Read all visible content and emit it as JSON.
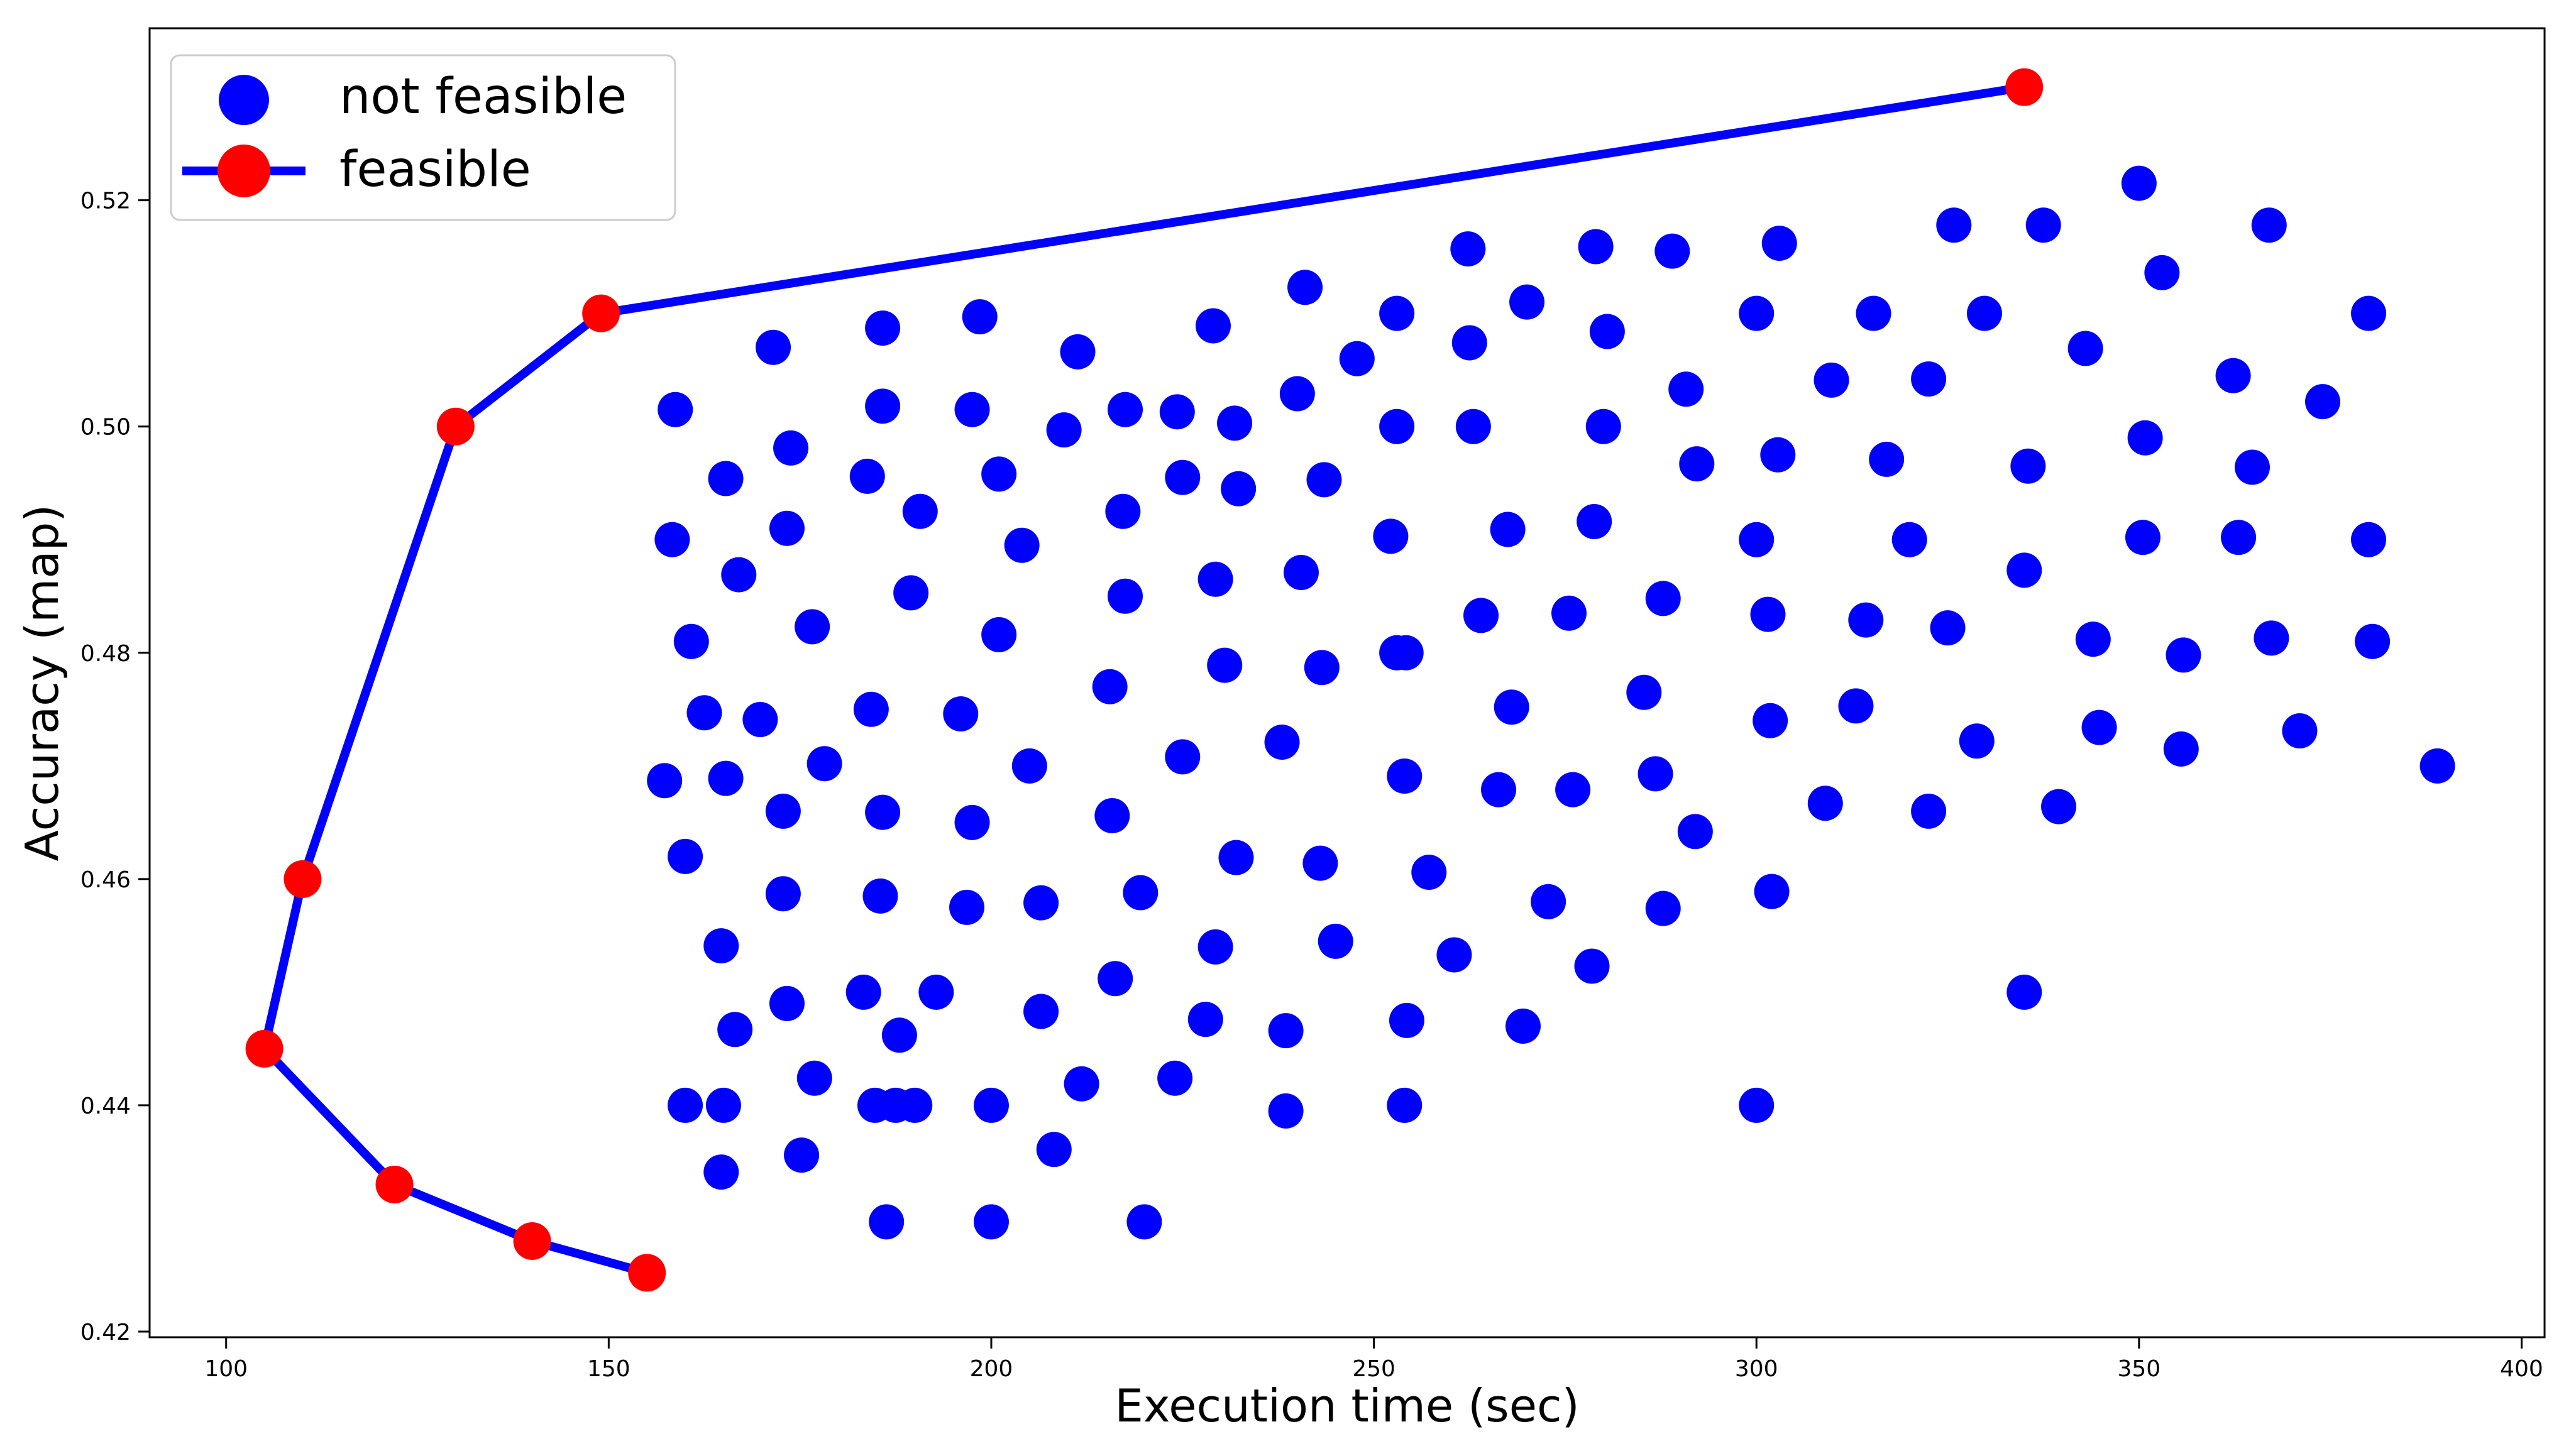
{
  "chart_data": {
    "type": "scatter",
    "title": "",
    "xlabel": "Execution time (sec)",
    "ylabel": "Accuracy (map)",
    "xlim": [
      90,
      403
    ],
    "ylim": [
      0.4195,
      0.5352
    ],
    "x_ticks": [
      100,
      150,
      200,
      250,
      300,
      350,
      400
    ],
    "x_tick_labels": [
      "100",
      "150",
      "200",
      "250",
      "300",
      "350",
      "400"
    ],
    "y_ticks": [
      0.42,
      0.44,
      0.46,
      0.48,
      0.5,
      0.52
    ],
    "y_tick_labels": [
      "0.42",
      "0.44",
      "0.46",
      "0.48",
      "0.50",
      "0.52"
    ],
    "grid": false,
    "legend": {
      "placement": "top-left",
      "entries": [
        {
          "label": "not feasible",
          "marker": "circle",
          "color": "#0000ff"
        },
        {
          "label": "feasible",
          "marker": "circle-with-line",
          "color": "#ff0000",
          "line_color": "#0000ff"
        }
      ]
    },
    "series": [
      {
        "name": "not feasible",
        "kind": "scatter",
        "color": "#0000ff",
        "points": [
          [
            158.7,
            0.5015
          ],
          [
            158.3,
            0.49
          ],
          [
            160.8,
            0.481
          ],
          [
            162.5,
            0.4747
          ],
          [
            157.3,
            0.4687
          ],
          [
            160.0,
            0.462
          ],
          [
            164.7,
            0.4541
          ],
          [
            165.3,
            0.4954
          ],
          [
            165.3,
            0.4689
          ],
          [
            167.0,
            0.4869
          ],
          [
            171.5,
            0.507
          ],
          [
            169.8,
            0.4741
          ],
          [
            166.5,
            0.4467
          ],
          [
            164.7,
            0.4341
          ],
          [
            160.0,
            0.44
          ],
          [
            165.0,
            0.44
          ],
          [
            173.8,
            0.4981
          ],
          [
            173.3,
            0.491
          ],
          [
            176.6,
            0.4823
          ],
          [
            178.2,
            0.4702
          ],
          [
            172.8,
            0.466
          ],
          [
            172.8,
            0.4587
          ],
          [
            173.3,
            0.449
          ],
          [
            176.9,
            0.4424
          ],
          [
            175.2,
            0.4356
          ],
          [
            185.8,
            0.5087
          ],
          [
            185.8,
            0.5018
          ],
          [
            183.8,
            0.4956
          ],
          [
            190.7,
            0.4925
          ],
          [
            189.5,
            0.4853
          ],
          [
            184.3,
            0.475
          ],
          [
            185.8,
            0.4659
          ],
          [
            185.5,
            0.4585
          ],
          [
            183.3,
            0.45
          ],
          [
            188.0,
            0.4462
          ],
          [
            184.8,
            0.44
          ],
          [
            187.5,
            0.44
          ],
          [
            190.0,
            0.44
          ],
          [
            186.3,
            0.4297
          ],
          [
            198.5,
            0.5097
          ],
          [
            197.5,
            0.5015
          ],
          [
            201.0,
            0.4958
          ],
          [
            204.0,
            0.4895
          ],
          [
            201.0,
            0.4816
          ],
          [
            196.0,
            0.4746
          ],
          [
            197.5,
            0.465
          ],
          [
            205.0,
            0.47
          ],
          [
            196.8,
            0.4575
          ],
          [
            206.5,
            0.4579
          ],
          [
            192.8,
            0.45
          ],
          [
            206.5,
            0.4483
          ],
          [
            200.0,
            0.44
          ],
          [
            200.0,
            0.4297
          ],
          [
            211.3,
            0.5066
          ],
          [
            209.5,
            0.4997
          ],
          [
            217.5,
            0.5015
          ],
          [
            217.2,
            0.4925
          ],
          [
            217.5,
            0.485
          ],
          [
            215.5,
            0.477
          ],
          [
            215.8,
            0.4656
          ],
          [
            219.5,
            0.4588
          ],
          [
            216.2,
            0.4512
          ],
          [
            211.8,
            0.4419
          ],
          [
            208.2,
            0.4361
          ],
          [
            220.0,
            0.4297
          ],
          [
            229.0,
            0.5089
          ],
          [
            224.3,
            0.5013
          ],
          [
            231.8,
            0.5003
          ],
          [
            225.0,
            0.4955
          ],
          [
            232.3,
            0.4945
          ],
          [
            229.3,
            0.4865
          ],
          [
            230.5,
            0.4789
          ],
          [
            225.0,
            0.4708
          ],
          [
            232.0,
            0.4619
          ],
          [
            229.3,
            0.454
          ],
          [
            228.0,
            0.4476
          ],
          [
            224.0,
            0.4424
          ],
          [
            241.0,
            0.5123
          ],
          [
            240.0,
            0.5029
          ],
          [
            243.5,
            0.4953
          ],
          [
            240.5,
            0.4871
          ],
          [
            243.2,
            0.4787
          ],
          [
            238.0,
            0.4721
          ],
          [
            243.0,
            0.4614
          ],
          [
            245.0,
            0.4545
          ],
          [
            238.5,
            0.4466
          ],
          [
            238.5,
            0.4395
          ],
          [
            247.8,
            0.506
          ],
          [
            253.0,
            0.51
          ],
          [
            253.0,
            0.5
          ],
          [
            252.2,
            0.4903
          ],
          [
            253.0,
            0.48
          ],
          [
            254.2,
            0.48
          ],
          [
            254.0,
            0.4691
          ],
          [
            257.2,
            0.4606
          ],
          [
            254.3,
            0.4475
          ],
          [
            254.0,
            0.44
          ],
          [
            262.3,
            0.5157
          ],
          [
            262.5,
            0.5074
          ],
          [
            263.0,
            0.5
          ],
          [
            267.5,
            0.4909
          ],
          [
            264.0,
            0.4833
          ],
          [
            268.0,
            0.4752
          ],
          [
            266.3,
            0.4679
          ],
          [
            260.5,
            0.4533
          ],
          [
            269.5,
            0.447
          ],
          [
            270.0,
            0.511
          ],
          [
            279.0,
            0.5159
          ],
          [
            280.5,
            0.5084
          ],
          [
            280.0,
            0.5
          ],
          [
            278.8,
            0.4916
          ],
          [
            275.5,
            0.4835
          ],
          [
            276.0,
            0.4679
          ],
          [
            272.8,
            0.458
          ],
          [
            278.5,
            0.4523
          ],
          [
            289.0,
            0.5155
          ],
          [
            290.8,
            0.5033
          ],
          [
            292.2,
            0.4967
          ],
          [
            287.8,
            0.4848
          ],
          [
            285.3,
            0.4765
          ],
          [
            286.8,
            0.4693
          ],
          [
            292.0,
            0.4642
          ],
          [
            287.8,
            0.4574
          ],
          [
            303.0,
            0.5162
          ],
          [
            300.0,
            0.51
          ],
          [
            309.8,
            0.5041
          ],
          [
            302.8,
            0.4975
          ],
          [
            300.0,
            0.49
          ],
          [
            301.5,
            0.4834
          ],
          [
            301.8,
            0.474
          ],
          [
            309.0,
            0.4667
          ],
          [
            302.0,
            0.4589
          ],
          [
            300.0,
            0.44
          ],
          [
            315.3,
            0.51
          ],
          [
            317.0,
            0.4971
          ],
          [
            320.0,
            0.49
          ],
          [
            314.3,
            0.4829
          ],
          [
            313.0,
            0.4753
          ],
          [
            325.8,
            0.5178
          ],
          [
            329.8,
            0.51
          ],
          [
            322.5,
            0.5042
          ],
          [
            325.0,
            0.4822
          ],
          [
            328.8,
            0.4722
          ],
          [
            322.5,
            0.466
          ],
          [
            337.5,
            0.5178
          ],
          [
            335.5,
            0.4965
          ],
          [
            335.0,
            0.4873
          ],
          [
            339.5,
            0.4664
          ],
          [
            335.0,
            0.45
          ],
          [
            350.0,
            0.5215
          ],
          [
            353.0,
            0.5136
          ],
          [
            343.0,
            0.5069
          ],
          [
            350.8,
            0.499
          ],
          [
            350.5,
            0.4902
          ],
          [
            344.0,
            0.4812
          ],
          [
            344.8,
            0.4734
          ],
          [
            355.8,
            0.4798
          ],
          [
            355.5,
            0.4715
          ],
          [
            367.0,
            0.5178
          ],
          [
            362.3,
            0.5045
          ],
          [
            364.8,
            0.4964
          ],
          [
            363.0,
            0.4902
          ],
          [
            367.3,
            0.4813
          ],
          [
            371.0,
            0.4731
          ],
          [
            374.0,
            0.5022
          ],
          [
            380.0,
            0.51
          ],
          [
            380.0,
            0.49
          ],
          [
            380.5,
            0.481
          ],
          [
            389.0,
            0.47
          ]
        ]
      },
      {
        "name": "feasible",
        "kind": "line+markers",
        "color": "#ff0000",
        "line_color": "#0000ff",
        "points": [
          [
            155.0,
            0.4252
          ],
          [
            140.0,
            0.428
          ],
          [
            122.0,
            0.433
          ],
          [
            105.0,
            0.445
          ],
          [
            110.0,
            0.46
          ],
          [
            130.0,
            0.5
          ],
          [
            149.0,
            0.51
          ],
          [
            335.0,
            0.53
          ]
        ]
      }
    ]
  }
}
